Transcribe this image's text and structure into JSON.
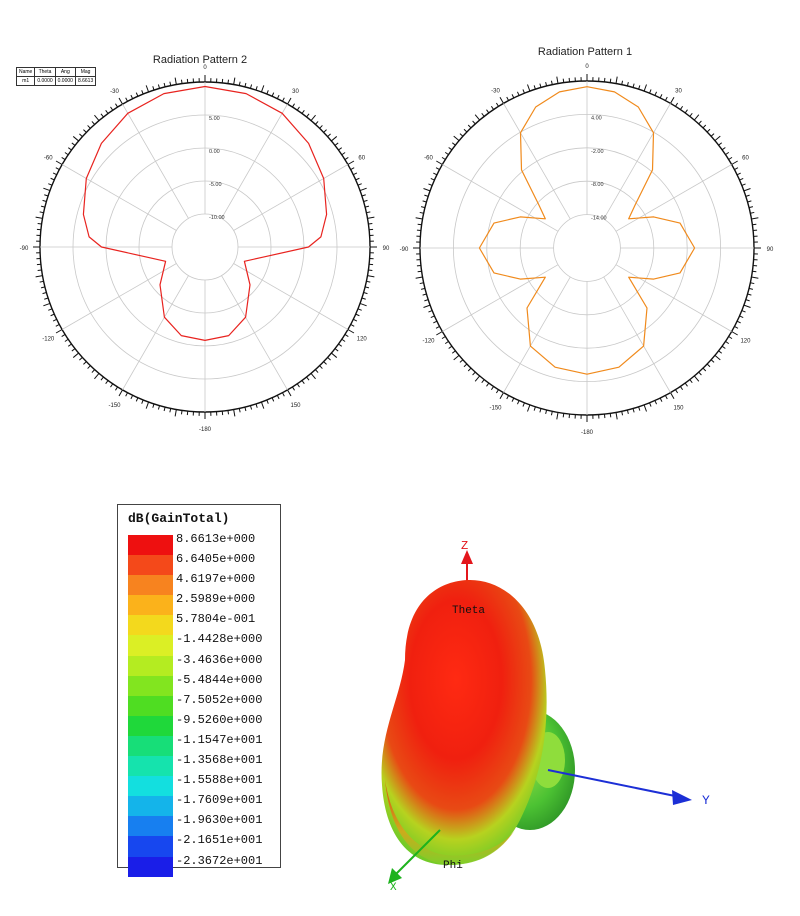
{
  "chart_data": [
    {
      "type": "polar",
      "title": "Radiation Pattern 2",
      "angle_ticks": [
        "0",
        "30",
        "60",
        "90",
        "120",
        "150",
        "-180",
        "-150",
        "-120",
        "-90",
        "-60",
        "-30"
      ],
      "radial_ticks": [
        "5.00",
        "0.00",
        "-5.00",
        "-10.00"
      ],
      "series_color": "#e8231f",
      "series": [
        {
          "values_db": [
            {
              "theta": 0,
              "r": 8.7
            },
            {
              "theta": 15,
              "r": 8.4
            },
            {
              "theta": 30,
              "r": 7.6
            },
            {
              "theta": 45,
              "r": 6.2
            },
            {
              "theta": 60,
              "r": 4.5
            },
            {
              "theta": 75,
              "r": 2.5
            },
            {
              "theta": 85,
              "r": 0.8
            },
            {
              "theta": 90,
              "r": -1.5
            },
            {
              "theta": 100,
              "r": -9.5
            },
            {
              "theta": 110,
              "r": -12.5
            },
            {
              "theta": 130,
              "r": -9.5
            },
            {
              "theta": 150,
              "r": -5.5
            },
            {
              "theta": 165,
              "r": -3.6
            },
            {
              "theta": 180,
              "r": -3.3
            },
            {
              "theta": 195,
              "r": -3.6
            },
            {
              "theta": 210,
              "r": -5.5
            },
            {
              "theta": 230,
              "r": -9.5
            },
            {
              "theta": 250,
              "r": -12.5
            },
            {
              "theta": 260,
              "r": -9.5
            },
            {
              "theta": 270,
              "r": -1.5
            },
            {
              "theta": 275,
              "r": 0.8
            },
            {
              "theta": 285,
              "r": 2.5
            },
            {
              "theta": 300,
              "r": 4.5
            },
            {
              "theta": 315,
              "r": 6.2
            },
            {
              "theta": 330,
              "r": 7.6
            },
            {
              "theta": 345,
              "r": 8.4
            }
          ]
        }
      ],
      "marker_table": {
        "headers": [
          "Name",
          "Theta",
          "Ang",
          "Mag"
        ],
        "row": [
          "m1",
          "0.0000",
          "0.0000",
          "8.6613"
        ]
      }
    },
    {
      "type": "polar",
      "title": "Radiation Pattern 1",
      "angle_ticks": [
        "0",
        "30",
        "60",
        "90",
        "120",
        "150",
        "-180",
        "-150",
        "-120",
        "-90",
        "-60",
        "-30"
      ],
      "radial_ticks": [
        "4.00",
        "-2.00",
        "-8.00",
        "-14.00"
      ],
      "series_color": "#f08a1c",
      "series": [
        {
          "values_db": [
            {
              "theta": 0,
              "r": 8.5
            },
            {
              "theta": 10,
              "r": 8.0
            },
            {
              "theta": 20,
              "r": 6.5
            },
            {
              "theta": 30,
              "r": 3.5
            },
            {
              "theta": 40,
              "r": -2.0
            },
            {
              "theta": 48,
              "r": -8.5
            },
            {
              "theta": 55,
              "r": -11.0
            },
            {
              "theta": 65,
              "r": -7.0
            },
            {
              "theta": 75,
              "r": -3.0
            },
            {
              "theta": 90,
              "r": -1.0
            },
            {
              "theta": 105,
              "r": -3.0
            },
            {
              "theta": 115,
              "r": -7.0
            },
            {
              "theta": 125,
              "r": -11.0
            },
            {
              "theta": 135,
              "r": -5.0
            },
            {
              "theta": 150,
              "r": 0.0
            },
            {
              "theta": 165,
              "r": 1.8
            },
            {
              "theta": 180,
              "r": 2.3
            },
            {
              "theta": 195,
              "r": 1.8
            },
            {
              "theta": 210,
              "r": 0.0
            },
            {
              "theta": 225,
              "r": -5.0
            },
            {
              "theta": 235,
              "r": -11.0
            },
            {
              "theta": 245,
              "r": -7.0
            },
            {
              "theta": 255,
              "r": -3.0
            },
            {
              "theta": 270,
              "r": -1.0
            },
            {
              "theta": 285,
              "r": -3.0
            },
            {
              "theta": 295,
              "r": -7.0
            },
            {
              "theta": 305,
              "r": -11.0
            },
            {
              "theta": 312,
              "r": -8.5
            },
            {
              "theta": 320,
              "r": -2.0
            },
            {
              "theta": 330,
              "r": 3.5
            },
            {
              "theta": 340,
              "r": 6.5
            },
            {
              "theta": 350,
              "r": 8.0
            }
          ]
        }
      ]
    },
    {
      "type": "heatmap",
      "title": "dB(GainTotal)",
      "legend_entries": [
        {
          "value": "8.6613e+000",
          "color": "#ee1010"
        },
        {
          "value": "6.6405e+000",
          "color": "#f4491a"
        },
        {
          "value": "4.6197e+000",
          "color": "#f7831f"
        },
        {
          "value": "2.5989e+000",
          "color": "#fbb21b"
        },
        {
          "value": "5.7804e-001",
          "color": "#f3d91d"
        },
        {
          "value": "-1.4428e+000",
          "color": "#dbef25"
        },
        {
          "value": "-3.4636e+000",
          "color": "#b4ec21"
        },
        {
          "value": "-5.4844e+000",
          "color": "#82e51f"
        },
        {
          "value": "-7.5052e+000",
          "color": "#4fdd22"
        },
        {
          "value": "-9.5260e+000",
          "color": "#1fd83a"
        },
        {
          "value": "-1.1547e+001",
          "color": "#17de78"
        },
        {
          "value": "-1.3568e+001",
          "color": "#15e3ad"
        },
        {
          "value": "-1.5588e+001",
          "color": "#13dfdf"
        },
        {
          "value": "-1.7609e+001",
          "color": "#14b4ea"
        },
        {
          "value": "-1.9630e+001",
          "color": "#177ff0"
        },
        {
          "value": "-2.1651e+001",
          "color": "#1747ef"
        },
        {
          "value": "-2.3672e+001",
          "color": "#1a1ee8"
        }
      ],
      "axis_labels": {
        "z": "Z",
        "y": "Y",
        "x": "X",
        "theta": "Theta",
        "phi": "Phi"
      }
    }
  ]
}
